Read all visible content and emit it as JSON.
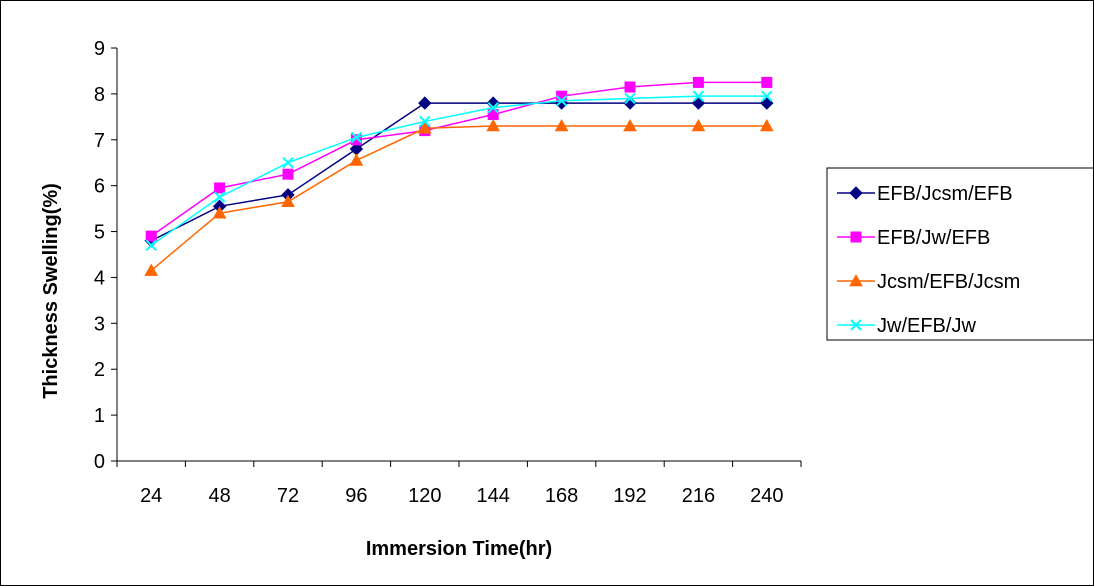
{
  "chart_data": {
    "type": "line",
    "title": "",
    "xlabel": "Immersion Time(hr)",
    "ylabel": "Thickness Swelling(%)",
    "categories": [
      "24",
      "48",
      "72",
      "96",
      "120",
      "144",
      "168",
      "192",
      "216",
      "240"
    ],
    "ylim": [
      0,
      9
    ],
    "yticks": [
      "0",
      "1",
      "2",
      "3",
      "4",
      "5",
      "6",
      "7",
      "8",
      "9"
    ],
    "grid": false,
    "legend_position": "right",
    "series": [
      {
        "name": "EFB/Jcsm/EFB",
        "color": "#000080",
        "marker": "diamond",
        "values": [
          4.8,
          5.55,
          5.8,
          6.8,
          7.8,
          7.8,
          7.8,
          7.8,
          7.8,
          7.8
        ]
      },
      {
        "name": "EFB/Jw/EFB",
        "color": "#ff00ff",
        "marker": "square",
        "values": [
          4.9,
          5.95,
          6.25,
          7.0,
          7.2,
          7.55,
          7.95,
          8.15,
          8.25,
          8.25
        ]
      },
      {
        "name": "Jcsm/EFB/Jcsm",
        "color": "#ff6600",
        "marker": "triangle",
        "values": [
          4.15,
          5.4,
          5.65,
          6.55,
          7.25,
          7.3,
          7.3,
          7.3,
          7.3,
          7.3
        ]
      },
      {
        "name": "Jw/EFB/Jw",
        "color": "#00ffff",
        "marker": "x",
        "values": [
          4.7,
          5.75,
          6.5,
          7.05,
          7.4,
          7.7,
          7.85,
          7.9,
          7.95,
          7.95
        ]
      }
    ]
  }
}
